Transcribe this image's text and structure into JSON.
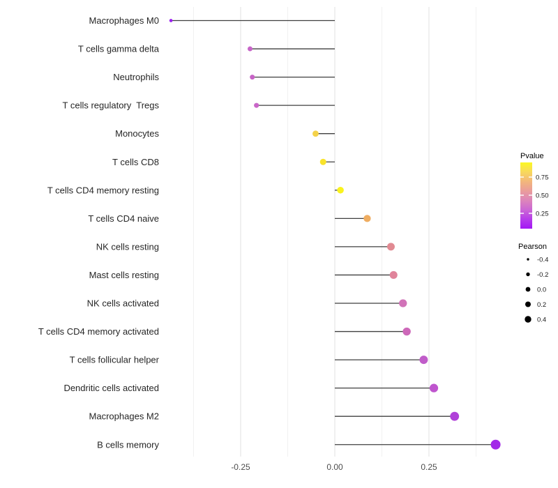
{
  "figure": {
    "background": "#ffffff"
  },
  "chart_data": {
    "type": "scatter",
    "variant": "horizontal-lollipop",
    "title": "",
    "xlabel": "",
    "ylabel": "",
    "grid": "vertical-only",
    "legend_position": "right",
    "xlim": [
      -0.46,
      0.46
    ],
    "baseline": 0,
    "x_ticks": {
      "values": [
        -0.25,
        0,
        0.25
      ],
      "labels": [
        "-0.25",
        "0.00",
        "0.25"
      ]
    },
    "x_minor_gridlines": [
      -0.375,
      -0.125,
      0.125,
      0.375
    ],
    "categories": [
      "Macrophages M0",
      "T cells gamma delta",
      "Neutrophils",
      "T cells regulatory  Tregs",
      "Monocytes",
      "T cells CD8",
      "T cells CD4 memory resting",
      "T cells CD4 naive",
      "NK cells resting",
      "Mast cells resting",
      "NK cells activated",
      "T cells CD4 memory activated",
      "T cells follicular helper",
      "Dendritic cells activated",
      "Macrophages M2",
      "B cells memory"
    ],
    "series": [
      {
        "name": "Pearson",
        "values": [
          -0.435,
          -0.225,
          -0.219,
          -0.208,
          -0.051,
          -0.031,
          0.015,
          0.086,
          0.149,
          0.156,
          0.181,
          0.191,
          0.236,
          0.263,
          0.318,
          0.427
        ],
        "point_colors": [
          "#9B1FF0",
          "#C765C8",
          "#C763C6",
          "#C966C8",
          "#F4D24A",
          "#F9E32B",
          "#FAF31D",
          "#EFAD61",
          "#E18A92",
          "#E0849B",
          "#D173B8",
          "#CD68B9",
          "#C05CC9",
          "#BF55CE",
          "#B041D9",
          "#A228E8"
        ]
      }
    ],
    "stem_color": "#3F3F3F",
    "legends": {
      "colorbar": {
        "title": "Pvalue",
        "tick_labels": [
          "0.75",
          "0.50",
          "0.25"
        ],
        "gradient_stops": [
          {
            "off": 0.0,
            "color": "#FBF821"
          },
          {
            "off": 0.14,
            "color": "#F8D95C"
          },
          {
            "off": 0.3,
            "color": "#F2B47E"
          },
          {
            "off": 0.45,
            "color": "#E899A0"
          },
          {
            "off": 0.58,
            "color": "#DC84BC"
          },
          {
            "off": 0.71,
            "color": "#CC68D4"
          },
          {
            "off": 0.86,
            "color": "#B53BEA"
          },
          {
            "off": 1.0,
            "color": "#A317F5"
          }
        ]
      },
      "size": {
        "title": "Pearson",
        "labels": [
          "-0.4",
          "-0.2",
          "0.0",
          "0.2",
          "0.4"
        ],
        "key_color": "#000000"
      }
    },
    "axis_text_color": "#4D4D4D",
    "category_text_color": "#262626",
    "gridline_major_color": "#E4E4E4",
    "gridline_minor_color": "#F1F1F1"
  }
}
